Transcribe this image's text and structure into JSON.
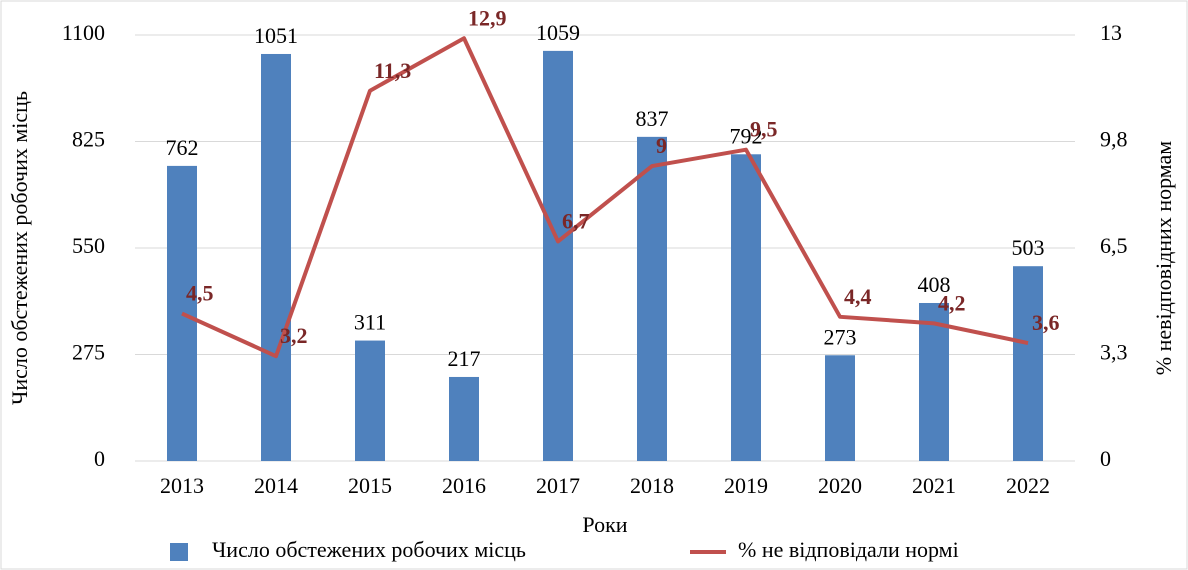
{
  "chart_data": {
    "type": "bar",
    "categories": [
      "2013",
      "2014",
      "2015",
      "2016",
      "2017",
      "2018",
      "2019",
      "2020",
      "2021",
      "2022"
    ],
    "series": [
      {
        "name": "Число обстежених робочих місць",
        "color": "#4f81bd",
        "type": "bar",
        "values": [
          762,
          1051,
          311,
          217,
          1059,
          837,
          792,
          273,
          408,
          503
        ]
      },
      {
        "name": "% не відповідали нормі",
        "color": "#c0504d",
        "type": "line",
        "axis": "y2",
        "values": [
          4.5,
          3.2,
          11.3,
          12.9,
          6.7,
          9,
          9.5,
          4.4,
          4.2,
          3.6
        ],
        "value_labels": [
          "4,5",
          "3,2",
          "11,3",
          "12,9",
          "6,7",
          "9",
          "9,5",
          "4,4",
          "4,2",
          "3,6"
        ]
      }
    ],
    "x_label": "Роки",
    "y_label": "Число обстежених робочих місць",
    "y2_label": "% невідповідних нормам",
    "ylim": [
      0,
      1100
    ],
    "yticks": [
      0,
      275,
      550,
      825,
      1100
    ],
    "y2lim": [
      0,
      13
    ],
    "y2ticks": [
      0,
      {
        "value": 3.25,
        "label": "3,3"
      },
      {
        "value": 6.5,
        "label": "6,5"
      },
      {
        "value": 9.75,
        "label": "9,8"
      },
      13
    ],
    "grid": true,
    "legend": "bottom"
  }
}
